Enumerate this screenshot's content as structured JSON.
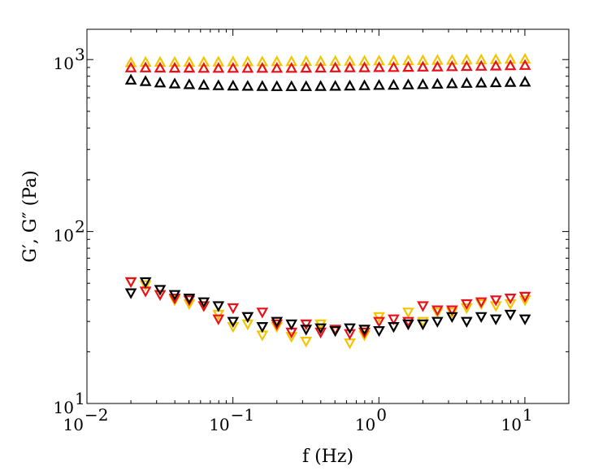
{
  "chart_data": {
    "type": "scatter",
    "title": "",
    "xlabel": "f (Hz)",
    "ylabel": "G′, G″ (Pa)",
    "xscale": "log",
    "yscale": "log",
    "xlim": [
      0.01,
      20
    ],
    "ylim": [
      10,
      1500
    ],
    "x_ticks": [
      {
        "value": 0.01,
        "base": "10",
        "exp": "−2"
      },
      {
        "value": 0.1,
        "base": "10",
        "exp": "−1"
      },
      {
        "value": 1,
        "base": "10",
        "exp": "0"
      },
      {
        "value": 10,
        "base": "10",
        "exp": "1"
      }
    ],
    "y_ticks": [
      {
        "value": 10,
        "base": "10",
        "exp": "1"
      },
      {
        "value": 100,
        "base": "10",
        "exp": "2"
      },
      {
        "value": 1000,
        "base": "10",
        "exp": "3"
      }
    ],
    "x": [
      0.02,
      0.0252,
      0.0317,
      0.0399,
      0.0502,
      0.0632,
      0.0796,
      0.1002,
      0.1262,
      0.1589,
      0.2,
      0.2518,
      0.317,
      0.3991,
      0.5024,
      0.6325,
      0.7962,
      1.0024,
      1.2619,
      1.5887,
      2.0,
      2.5179,
      3.1698,
      3.9905,
      5.0238,
      6.3246,
      7.9621,
      10.0237
    ],
    "series": [
      {
        "name": "G′ (yellow)",
        "kind": "storage",
        "color": "#f5c400",
        "values": [
          960,
          965,
          965,
          965,
          965,
          967,
          968,
          970,
          970,
          970,
          972,
          973,
          975,
          975,
          977,
          978,
          980,
          982,
          984,
          985,
          987,
          990,
          992,
          995,
          997,
          1000,
          1003,
          1005
        ]
      },
      {
        "name": "G′ (red)",
        "kind": "storage",
        "color": "#e8111a",
        "values": [
          895,
          895,
          893,
          892,
          892,
          890,
          890,
          890,
          890,
          890,
          890,
          890,
          892,
          893,
          895,
          896,
          897,
          899,
          900,
          902,
          905,
          907,
          910,
          913,
          915,
          918,
          921,
          925
        ]
      },
      {
        "name": "G′ (black)",
        "kind": "storage",
        "color": "#000000",
        "values": [
          760,
          745,
          732,
          722,
          715,
          710,
          705,
          702,
          700,
          698,
          697,
          697,
          697,
          698,
          700,
          702,
          705,
          708,
          710,
          713,
          716,
          720,
          724,
          728,
          731,
          734,
          737,
          740
        ]
      },
      {
        "name": "G″ (yellow)",
        "kind": "loss",
        "color": "#f5c400",
        "values": [
          51,
          49,
          43,
          40,
          38,
          37,
          33,
          28,
          29,
          25,
          28,
          24.5,
          23,
          29,
          26.5,
          22.5,
          25,
          32,
          28,
          34,
          30,
          34,
          34,
          36,
          38,
          37,
          38,
          40
        ]
      },
      {
        "name": "G″ (red)",
        "kind": "loss",
        "color": "#e8111a",
        "values": [
          51,
          45,
          43,
          41,
          40,
          37,
          31,
          36,
          32,
          34,
          29,
          26,
          29,
          26,
          27,
          25.5,
          26,
          30,
          31,
          30,
          37,
          35,
          35,
          38,
          39,
          40,
          41,
          42
        ]
      },
      {
        "name": "G″ (black)",
        "kind": "loss",
        "color": "#000000",
        "values": [
          44,
          51,
          46,
          43,
          41,
          39,
          37,
          30,
          32,
          28,
          30,
          29,
          27,
          27.5,
          26.5,
          27.5,
          27,
          26.5,
          28,
          29,
          29,
          30,
          32,
          30,
          32,
          31,
          33,
          31
        ]
      }
    ]
  }
}
